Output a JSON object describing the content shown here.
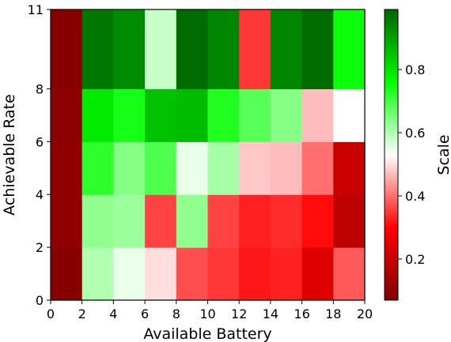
{
  "chart_data": {
    "type": "heatmap",
    "title": "",
    "xlabel": "Available Battery",
    "ylabel": "Achievable Rate",
    "colorbar_label": "Scale",
    "x_edges": [
      0,
      2,
      4,
      6,
      8,
      10,
      12,
      14,
      16,
      18,
      20
    ],
    "y_edges": [
      0,
      2,
      4,
      6,
      8,
      11
    ],
    "x_ticks": [
      "0",
      "2",
      "4",
      "6",
      "8",
      "10",
      "12",
      "14",
      "16",
      "18",
      "20"
    ],
    "y_ticks": [
      "0",
      "2",
      "4",
      "6",
      "8",
      "11"
    ],
    "colorbar_ticks": [
      "0.2",
      "0.4",
      "0.6",
      "0.8"
    ],
    "colorbar_tick_values": [
      0.2,
      0.4,
      0.6,
      0.8
    ],
    "vmin": 0.07,
    "vmax": 0.99,
    "colormap": [
      "#800000",
      "#ff0000",
      "#ffffff",
      "#00ff00",
      "#006400"
    ],
    "values": [
      [
        0.08,
        0.6,
        0.55,
        0.5,
        0.37,
        0.35,
        0.32,
        0.33,
        0.24,
        0.38
      ],
      [
        0.1,
        0.63,
        0.62,
        0.36,
        0.63,
        0.36,
        0.33,
        0.34,
        0.31,
        0.18
      ],
      [
        0.1,
        0.72,
        0.64,
        0.69,
        0.55,
        0.61,
        0.48,
        0.47,
        0.4,
        0.2
      ],
      [
        0.09,
        0.79,
        0.74,
        0.85,
        0.86,
        0.73,
        0.68,
        0.64,
        0.47,
        0.53
      ],
      [
        0.08,
        0.96,
        0.93,
        0.58,
        0.98,
        0.94,
        0.35,
        0.94,
        0.98,
        0.75
      ]
    ]
  }
}
